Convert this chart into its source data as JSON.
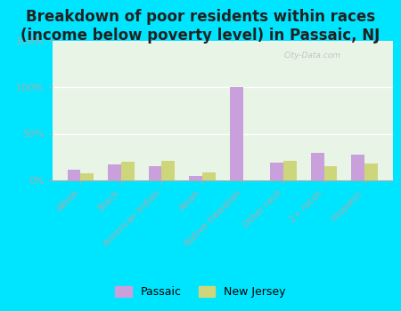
{
  "title": "Breakdown of poor residents within races\n(income below poverty level) in Passaic, NJ",
  "categories": [
    "White",
    "Black",
    "American Indian",
    "Asian",
    "Native Hawaiian",
    "Other race",
    "2+ races",
    "Hispanic"
  ],
  "passaic": [
    11,
    17,
    15,
    5,
    100,
    19,
    30,
    28
  ],
  "new_jersey": [
    8,
    20,
    21,
    9,
    0,
    21,
    15,
    18
  ],
  "passaic_color": "#c9a0dc",
  "nj_color": "#cdd67a",
  "bg_color": "#00e5ff",
  "plot_bg_color": "#e8f5e6",
  "title_fontsize": 12,
  "ylim": [
    0,
    150
  ],
  "yticks": [
    0,
    50,
    100,
    150
  ],
  "ytick_labels": [
    "0%",
    "50%",
    "100%",
    "150%"
  ],
  "watermark": "City-Data.com",
  "legend_passaic": "Passaic",
  "legend_nj": "New Jersey",
  "xlabel_color": "#cc6666",
  "ylabel_color": "#888888"
}
